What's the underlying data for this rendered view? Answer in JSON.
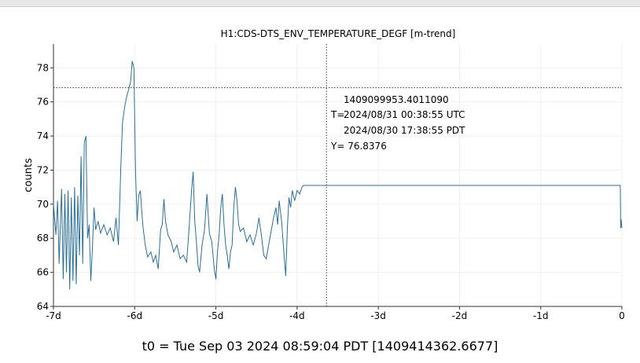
{
  "window": {
    "footer": "t0 = Tue Sep 03 2024 08:59:04 PDT [1409414362.6677]"
  },
  "chart_data": {
    "type": "line",
    "title": "H1:CDS-DTS_ENV_TEMPERATURE_DEGF [m-trend]",
    "ylabel": "counts",
    "xlabel": "",
    "xlim": [
      -7,
      0
    ],
    "ylim": [
      64,
      79.4
    ],
    "x_ticks": [
      {
        "value": -7,
        "label": "-7d"
      },
      {
        "value": -6,
        "label": "-6d"
      },
      {
        "value": -5,
        "label": "-5d"
      },
      {
        "value": -4,
        "label": "-4d"
      },
      {
        "value": -3,
        "label": "-3d"
      },
      {
        "value": -2,
        "label": "-2d"
      },
      {
        "value": -1,
        "label": "-1d"
      },
      {
        "value": 0,
        "label": "0"
      }
    ],
    "y_ticks": [
      64,
      66,
      68,
      70,
      72,
      74,
      76,
      78
    ],
    "grid": true,
    "line_color": "#2a6f97",
    "cursor": {
      "x": -3.6386,
      "y": 76.8376,
      "gps": "1409099953.4011090",
      "utc": "2024/08/31 00:38:55 UTC",
      "pdt": "2024/08/30 17:38:55 PDT",
      "t_prefix": "T=",
      "y_label": "Y= 76.8376"
    },
    "series": [
      {
        "values": [
          [
            -7.0,
            70.0
          ],
          [
            -6.97,
            68.2
          ],
          [
            -6.95,
            70.2
          ],
          [
            -6.93,
            66.5
          ],
          [
            -6.9,
            70.9
          ],
          [
            -6.88,
            65.6
          ],
          [
            -6.86,
            70.6
          ],
          [
            -6.84,
            66.0
          ],
          [
            -6.82,
            70.8
          ],
          [
            -6.8,
            65.0
          ],
          [
            -6.78,
            70.4
          ],
          [
            -6.76,
            65.5
          ],
          [
            -6.74,
            71.0
          ],
          [
            -6.72,
            65.3
          ],
          [
            -6.7,
            70.5
          ],
          [
            -6.68,
            67.0
          ],
          [
            -6.66,
            72.8
          ],
          [
            -6.64,
            66.5
          ],
          [
            -6.62,
            73.6
          ],
          [
            -6.6,
            74.0
          ],
          [
            -6.58,
            68.0
          ],
          [
            -6.56,
            68.8
          ],
          [
            -6.54,
            65.5
          ],
          [
            -6.52,
            67.5
          ],
          [
            -6.5,
            69.8
          ],
          [
            -6.48,
            68.5
          ],
          [
            -6.45,
            69.0
          ],
          [
            -6.42,
            68.3
          ],
          [
            -6.38,
            68.8
          ],
          [
            -6.34,
            68.2
          ],
          [
            -6.3,
            68.6
          ],
          [
            -6.26,
            67.8
          ],
          [
            -6.23,
            69.2
          ],
          [
            -6.2,
            67.6
          ],
          [
            -6.17,
            72.2
          ],
          [
            -6.15,
            74.8
          ],
          [
            -6.12,
            75.8
          ],
          [
            -6.1,
            76.3
          ],
          [
            -6.07,
            76.8
          ],
          [
            -6.05,
            77.2
          ],
          [
            -6.03,
            78.4
          ],
          [
            -6.01,
            78.0
          ],
          [
            -5.99,
            72.0
          ],
          [
            -5.97,
            69.0
          ],
          [
            -5.95,
            70.5
          ],
          [
            -5.93,
            70.8
          ],
          [
            -5.9,
            68.8
          ],
          [
            -5.87,
            67.6
          ],
          [
            -5.84,
            66.9
          ],
          [
            -5.8,
            67.2
          ],
          [
            -5.77,
            66.6
          ],
          [
            -5.74,
            67.0
          ],
          [
            -5.71,
            66.2
          ],
          [
            -5.68,
            68.5
          ],
          [
            -5.66,
            68.8
          ],
          [
            -5.64,
            70.3
          ],
          [
            -5.62,
            69.0
          ],
          [
            -5.59,
            68.2
          ],
          [
            -5.55,
            67.8
          ],
          [
            -5.52,
            67.2
          ],
          [
            -5.48,
            67.6
          ],
          [
            -5.44,
            66.8
          ],
          [
            -5.4,
            67.0
          ],
          [
            -5.36,
            66.6
          ],
          [
            -5.33,
            68.6
          ],
          [
            -5.3,
            70.8
          ],
          [
            -5.28,
            71.9
          ],
          [
            -5.26,
            69.0
          ],
          [
            -5.24,
            67.8
          ],
          [
            -5.22,
            66.4
          ],
          [
            -5.2,
            66.0
          ],
          [
            -5.17,
            67.6
          ],
          [
            -5.14,
            68.5
          ],
          [
            -5.11,
            70.6
          ],
          [
            -5.08,
            68.3
          ],
          [
            -5.05,
            67.8
          ],
          [
            -5.02,
            66.2
          ],
          [
            -5.0,
            65.6
          ],
          [
            -4.98,
            67.2
          ],
          [
            -4.96,
            68.2
          ],
          [
            -4.94,
            69.8
          ],
          [
            -4.92,
            70.6
          ],
          [
            -4.9,
            68.8
          ],
          [
            -4.88,
            67.6
          ],
          [
            -4.86,
            67.0
          ],
          [
            -4.84,
            66.2
          ],
          [
            -4.82,
            67.2
          ],
          [
            -4.8,
            67.6
          ],
          [
            -4.78,
            69.8
          ],
          [
            -4.76,
            71.0
          ],
          [
            -4.74,
            70.2
          ],
          [
            -4.72,
            68.8
          ],
          [
            -4.7,
            68.4
          ],
          [
            -4.66,
            68.6
          ],
          [
            -4.62,
            67.8
          ],
          [
            -4.58,
            68.2
          ],
          [
            -4.54,
            67.6
          ],
          [
            -4.5,
            68.3
          ],
          [
            -4.47,
            69.2
          ],
          [
            -4.44,
            68.2
          ],
          [
            -4.41,
            67.0
          ],
          [
            -4.38,
            66.8
          ],
          [
            -4.35,
            67.6
          ],
          [
            -4.32,
            68.4
          ],
          [
            -4.29,
            69.2
          ],
          [
            -4.26,
            69.8
          ],
          [
            -4.24,
            68.8
          ],
          [
            -4.22,
            70.2
          ],
          [
            -4.19,
            69.0
          ],
          [
            -4.16,
            67.0
          ],
          [
            -4.14,
            65.8
          ],
          [
            -4.12,
            68.6
          ],
          [
            -4.1,
            70.4
          ],
          [
            -4.08,
            69.8
          ],
          [
            -4.06,
            70.8
          ],
          [
            -4.03,
            70.2
          ],
          [
            -4.0,
            70.8
          ],
          [
            -3.97,
            70.6
          ],
          [
            -3.94,
            71.0
          ],
          [
            -3.92,
            71.1
          ],
          [
            -3.9,
            71.1
          ],
          [
            -3.8,
            71.1
          ],
          [
            -3.7,
            71.1
          ],
          [
            -3.64,
            71.1
          ],
          [
            -3.5,
            71.1
          ],
          [
            -3.0,
            71.1
          ],
          [
            -2.5,
            71.1
          ],
          [
            -2.0,
            71.1
          ],
          [
            -1.5,
            71.1
          ],
          [
            -1.0,
            71.1
          ],
          [
            -0.5,
            71.1
          ],
          [
            -0.1,
            71.1
          ],
          [
            -0.02,
            71.1
          ],
          [
            -0.015,
            68.6
          ],
          [
            -0.01,
            69.1
          ],
          [
            0.0,
            68.6
          ]
        ]
      }
    ]
  }
}
